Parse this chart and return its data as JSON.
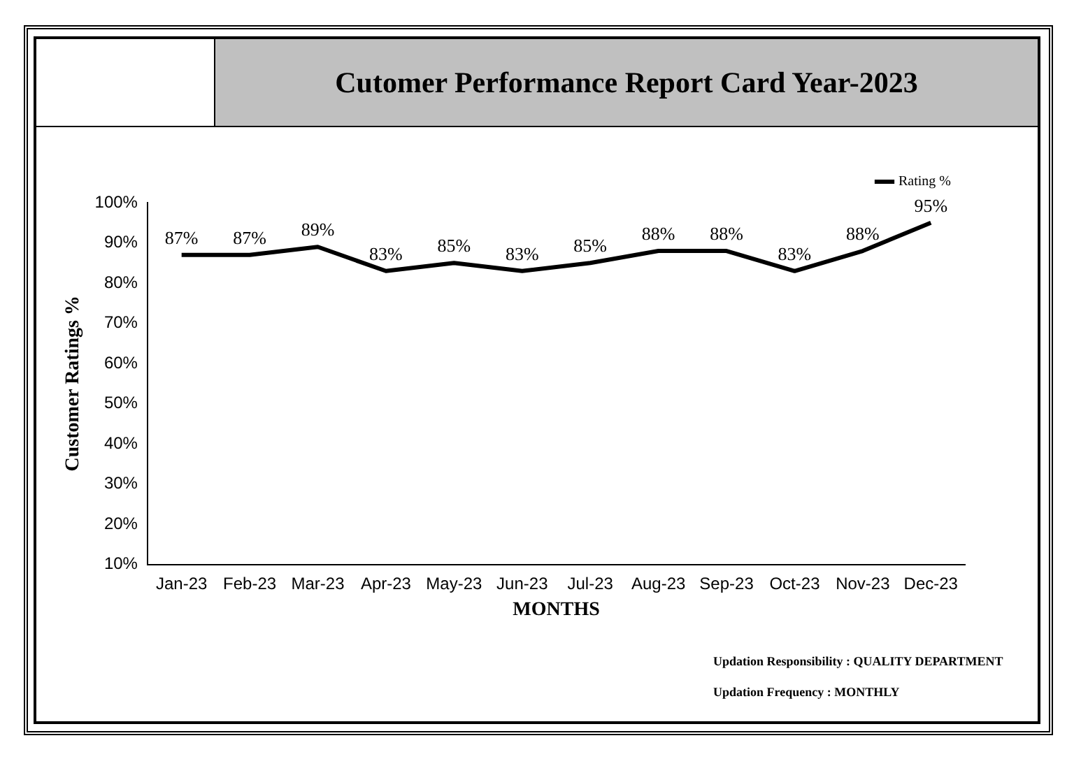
{
  "chart_data": {
    "type": "line",
    "title": "Cutomer Performance Report Card Year-2023",
    "xlabel": "MONTHS",
    "ylabel": "Customer Ratings %",
    "categories": [
      "Jan-23",
      "Feb-23",
      "Mar-23",
      "Apr-23",
      "May-23",
      "Jun-23",
      "Jul-23",
      "Aug-23",
      "Sep-23",
      "Oct-23",
      "Nov-23",
      "Dec-23"
    ],
    "series": [
      {
        "name": "Rating %",
        "color": "#000000",
        "values": [
          87,
          87,
          89,
          83,
          85,
          83,
          85,
          88,
          88,
          83,
          88,
          95
        ],
        "value_labels": [
          "87%",
          "87%",
          "89%",
          "83%",
          "85%",
          "83%",
          "85%",
          "88%",
          "88%",
          "83%",
          "88%",
          "95%"
        ]
      }
    ],
    "ylim": [
      10,
      100
    ],
    "yticks": [
      {
        "value": 10,
        "label": "10%"
      },
      {
        "value": 20,
        "label": "20%"
      },
      {
        "value": 30,
        "label": "30%"
      },
      {
        "value": 40,
        "label": "40%"
      },
      {
        "value": 50,
        "label": "50%"
      },
      {
        "value": 60,
        "label": "60%"
      },
      {
        "value": 70,
        "label": "70%"
      },
      {
        "value": 80,
        "label": "80%"
      },
      {
        "value": 90,
        "label": "90%"
      },
      {
        "value": 100,
        "label": "100%"
      }
    ],
    "grid": false,
    "legend": "top right",
    "marker": "none",
    "line_style": "solid",
    "annotations": [
      "Updation Responsibility : QUALITY DEPARTMENT",
      "Updation Frequency : MONTHLY"
    ]
  }
}
